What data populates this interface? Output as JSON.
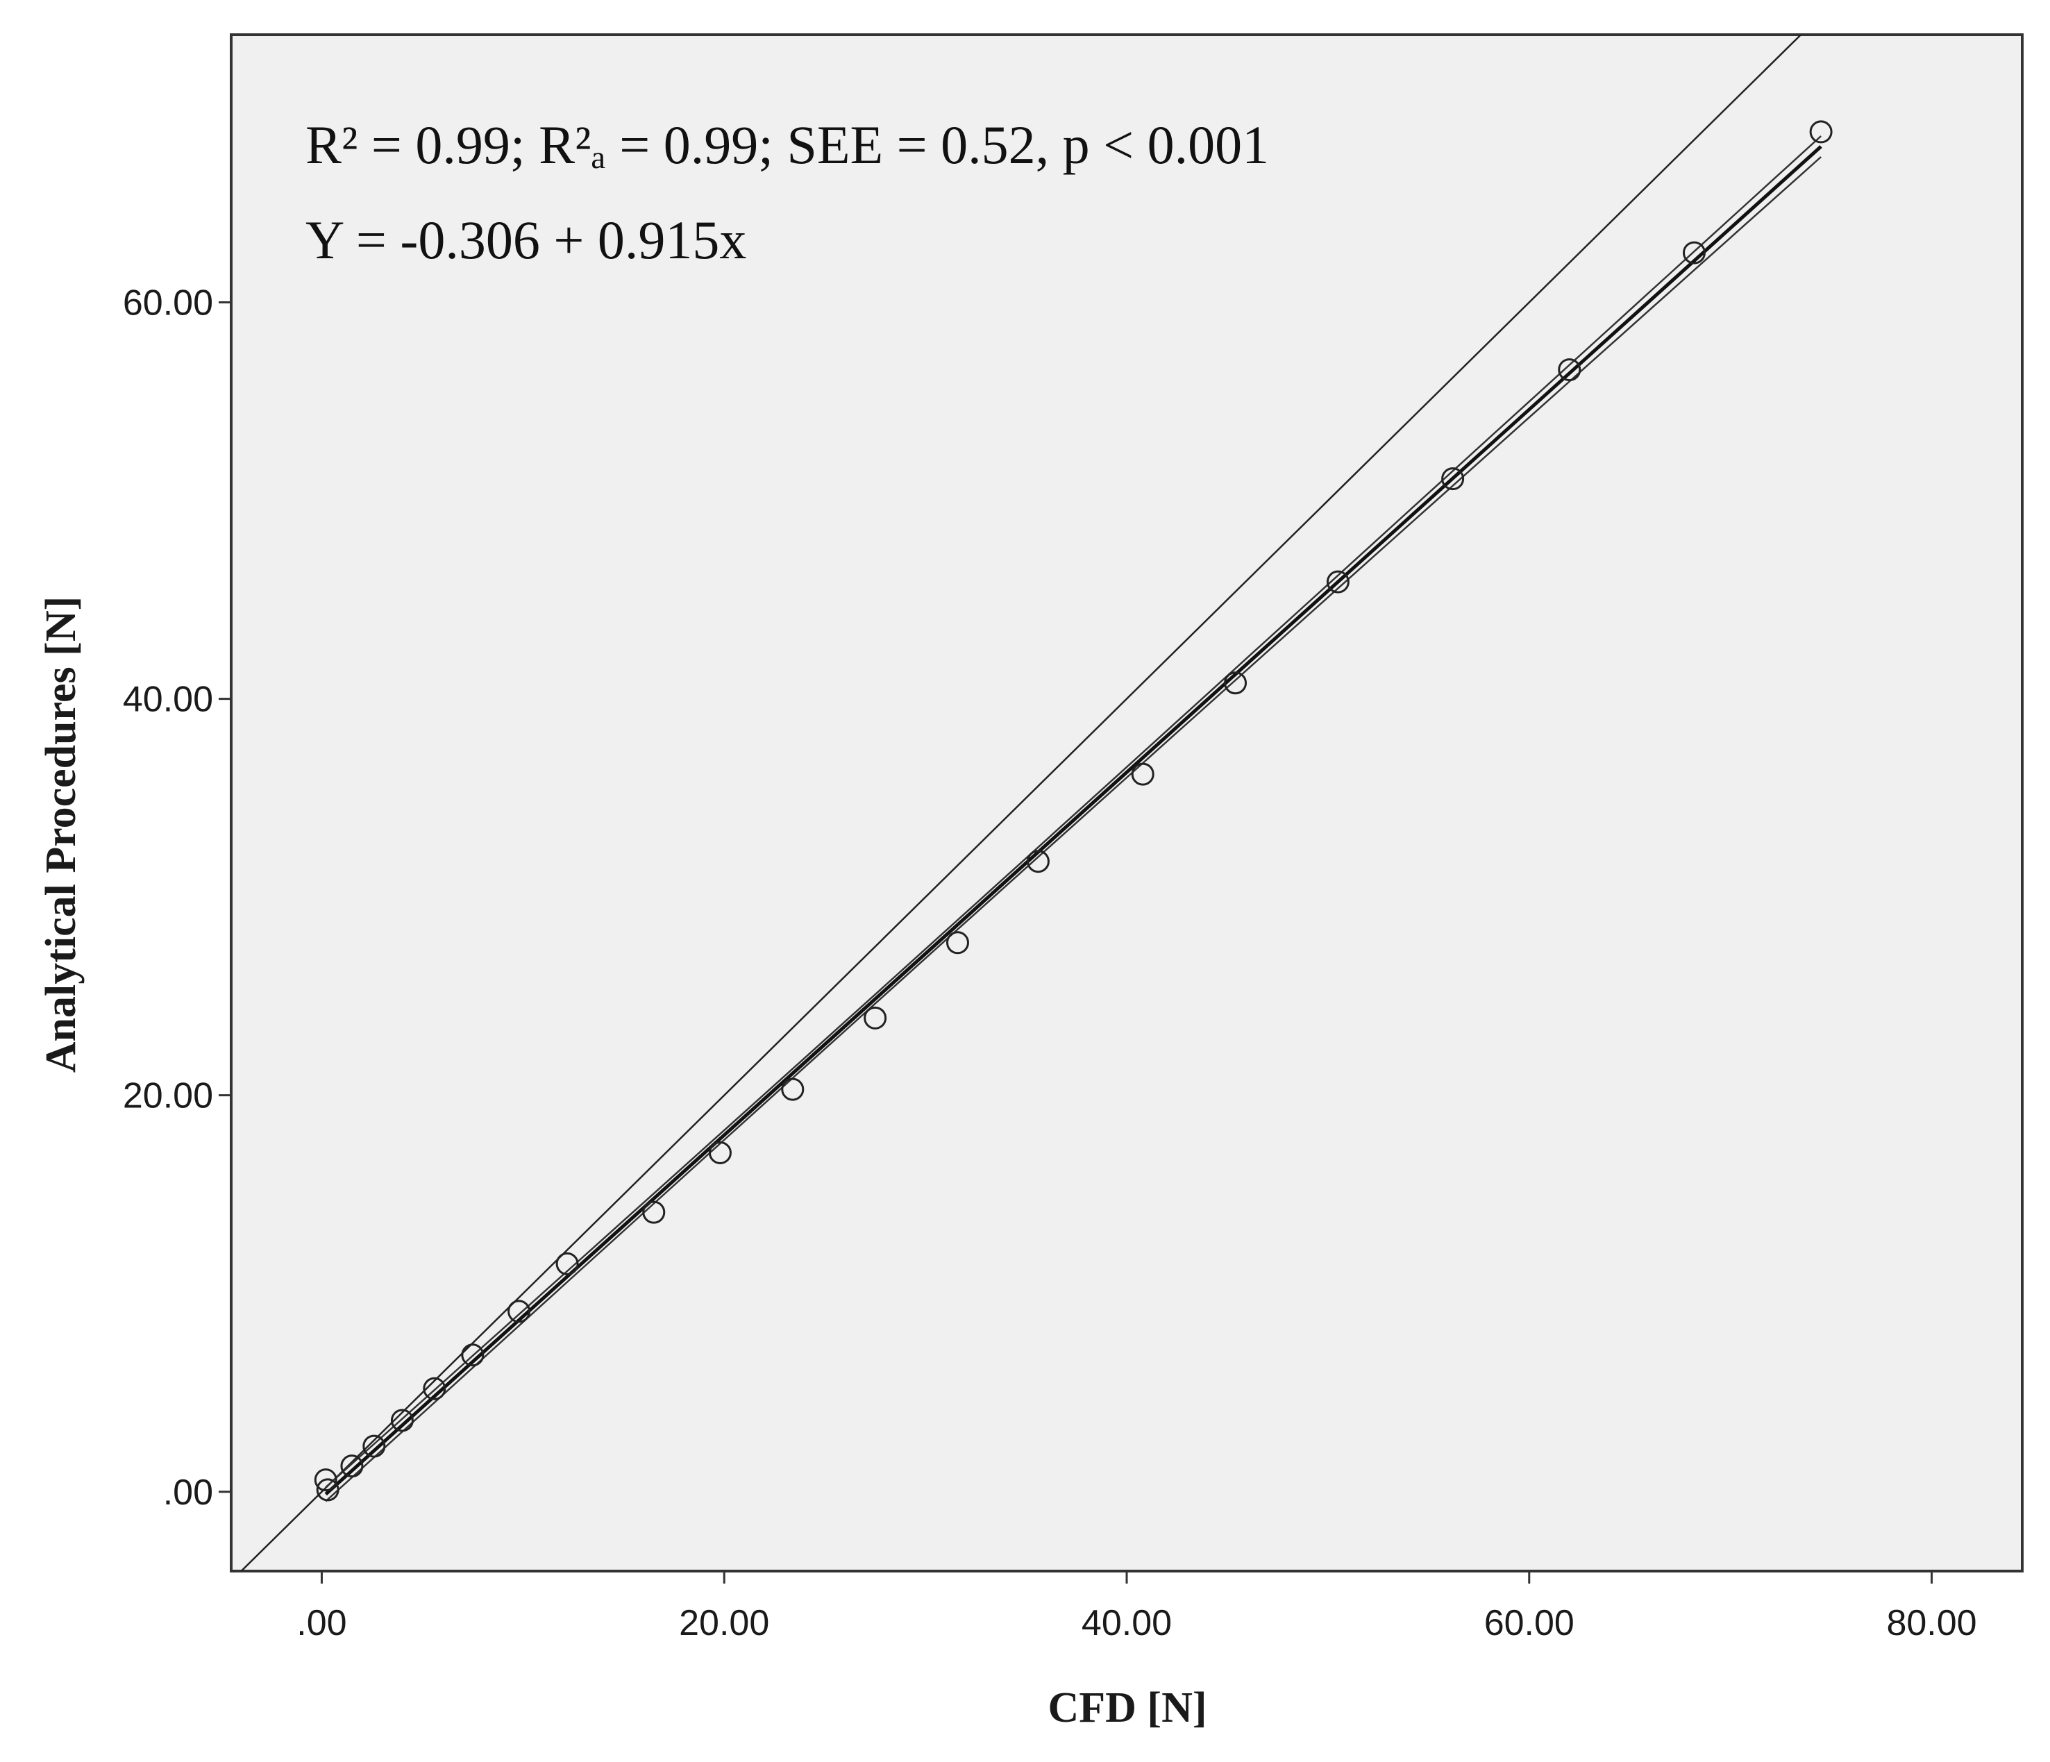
{
  "chart_data": {
    "type": "scatter",
    "xlabel": "CFD [N]",
    "ylabel": "Analytical Procedures [N]",
    "xlim": [
      -4.5,
      84.5
    ],
    "ylim": [
      -4,
      73.5
    ],
    "xticks": [
      0,
      20,
      40,
      60,
      80
    ],
    "xtick_labels": [
      ".00",
      "20.00",
      "40.00",
      "60.00",
      "80.00"
    ],
    "yticks": [
      0,
      20,
      40,
      60
    ],
    "ytick_labels": [
      ".00",
      "20.00",
      "40.00",
      "60.00"
    ],
    "grid": false,
    "annotations": [
      "R² = 0.99; R²ₐ = 0.99; SEE = 0.52, p < 0.001",
      "Y = -0.306 + 0.915x"
    ],
    "regression": {
      "intercept": -0.306,
      "slope": 0.915
    },
    "points": [
      {
        "x": 0.2,
        "y": 0.6
      },
      {
        "x": 0.3,
        "y": 0.1
      },
      {
        "x": 1.5,
        "y": 1.3
      },
      {
        "x": 2.6,
        "y": 2.3
      },
      {
        "x": 4.0,
        "y": 3.6
      },
      {
        "x": 5.6,
        "y": 5.2
      },
      {
        "x": 7.5,
        "y": 6.9
      },
      {
        "x": 9.8,
        "y": 9.1
      },
      {
        "x": 12.2,
        "y": 11.5
      },
      {
        "x": 16.5,
        "y": 14.1
      },
      {
        "x": 19.8,
        "y": 17.1
      },
      {
        "x": 23.4,
        "y": 20.3
      },
      {
        "x": 27.5,
        "y": 23.9
      },
      {
        "x": 31.6,
        "y": 27.7
      },
      {
        "x": 35.6,
        "y": 31.8
      },
      {
        "x": 40.8,
        "y": 36.2
      },
      {
        "x": 45.4,
        "y": 40.8
      },
      {
        "x": 50.5,
        "y": 45.9
      },
      {
        "x": 56.2,
        "y": 51.1
      },
      {
        "x": 62.0,
        "y": 56.6
      },
      {
        "x": 68.2,
        "y": 62.5
      },
      {
        "x": 74.5,
        "y": 68.6
      }
    ]
  }
}
